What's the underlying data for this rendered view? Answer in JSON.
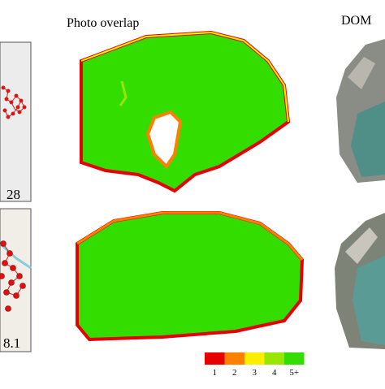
{
  "figure": {
    "middle_title": "Photo overlap",
    "right_title": "DOM",
    "left_top_value": "28",
    "left_bottom_value": "8.1",
    "legend": {
      "items": [
        {
          "label": "1",
          "color": "#e60000"
        },
        {
          "label": "2",
          "color": "#ff7f00"
        },
        {
          "label": "3",
          "color": "#ffee00"
        },
        {
          "label": "4",
          "color": "#99e600"
        },
        {
          "label": "5+",
          "color": "#33dd00"
        }
      ]
    }
  }
}
